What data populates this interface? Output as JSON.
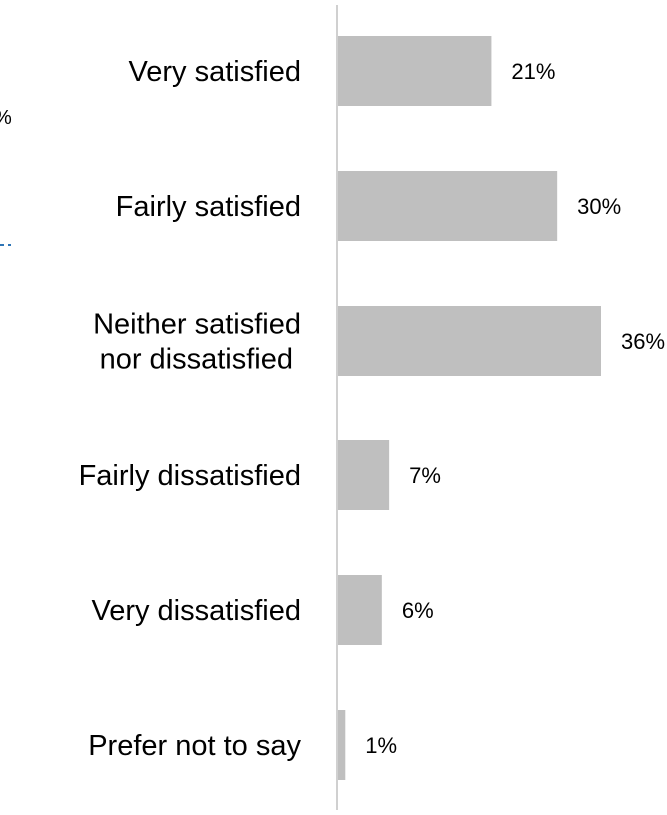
{
  "chart_data": {
    "type": "bar",
    "orientation": "horizontal",
    "categories": [
      "Very satisfied",
      "Fairly satisfied",
      "Neither satisfied nor dissatisfied",
      "Fairly dissatisfied",
      "Very dissatisfied",
      "Prefer not to say"
    ],
    "category_label_lines": [
      [
        "Very satisfied"
      ],
      [
        "Fairly satisfied"
      ],
      [
        "Neither satisfied",
        "nor dissatisfied"
      ],
      [
        "Fairly dissatisfied"
      ],
      [
        "Very dissatisfied"
      ],
      [
        "Prefer not to say"
      ]
    ],
    "values": [
      21,
      30,
      36,
      7,
      6,
      1
    ],
    "value_labels": [
      "21%",
      "30%",
      "36%",
      "7%",
      "6%",
      "1%"
    ],
    "xlim": [
      0,
      36
    ],
    "unit": "%",
    "bar_color": "#bfbfbf",
    "axis_color": "#d0d0d0",
    "grid": false,
    "legend": "none"
  },
  "edge_fragments": {
    "left_percent": "%"
  },
  "colors": {
    "accent_dashes": "#2e75b6"
  }
}
